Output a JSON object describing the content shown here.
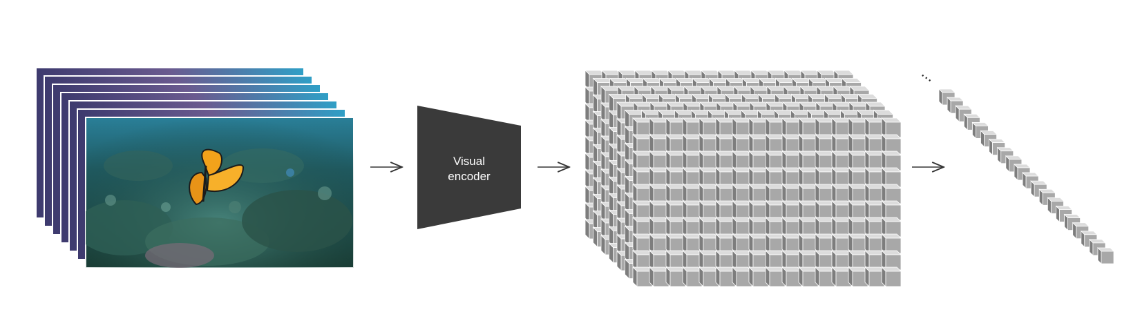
{
  "diagram": {
    "frames": {
      "count": 7,
      "content": "underwater coral reef with a monarch butterfly"
    },
    "encoder": {
      "line1": "Visual",
      "line2": "encoder",
      "fill": "#3a3a3a"
    },
    "feature_grid": {
      "cols": 16,
      "rows": 10,
      "depth": 7,
      "face": "#a8a8a8",
      "top": "#dcdcdc",
      "side": "#7d7d7d"
    },
    "token_sequence": {
      "visible_tokens": 20,
      "ellipsis": "..."
    },
    "arrows": {
      "count": 3,
      "color": "#333333"
    }
  }
}
